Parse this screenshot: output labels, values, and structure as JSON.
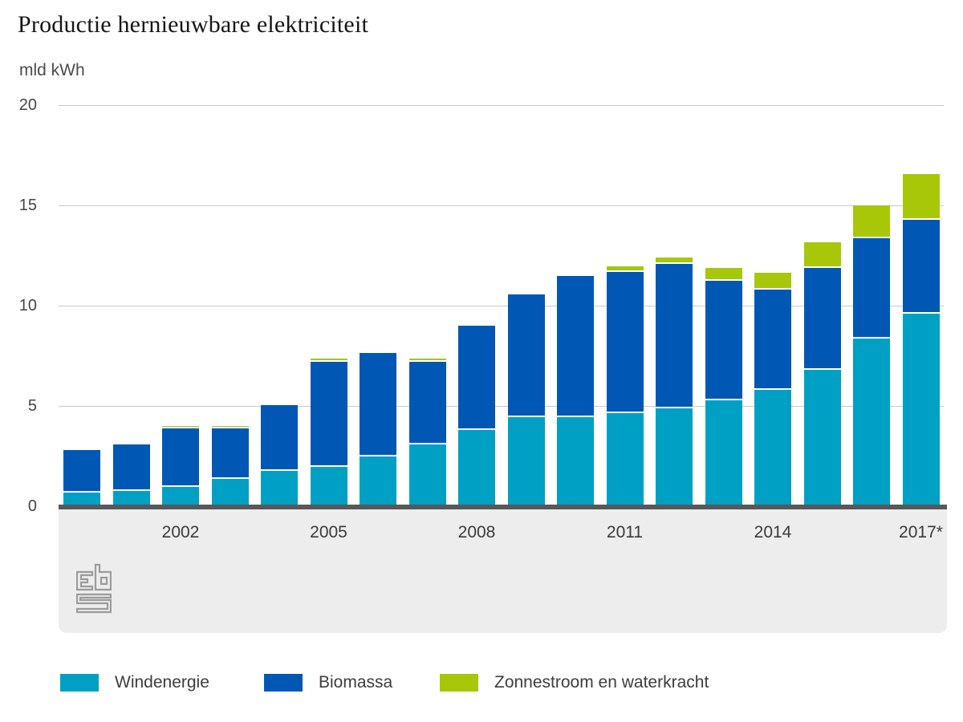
{
  "chart_data": {
    "type": "bar",
    "stacked": true,
    "title": "Productie hernieuwbare elektriciteit",
    "unit_label": "mld kWh",
    "ylabel": "mld kWh",
    "ylim": [
      0,
      20
    ],
    "yticks": [
      0,
      5,
      10,
      15,
      20
    ],
    "grid": "horizontal",
    "legend_position": "bottom",
    "categories": [
      "2000",
      "2001",
      "2002",
      "2003",
      "2004",
      "2005",
      "2006",
      "2007",
      "2008",
      "2009",
      "2010",
      "2011",
      "2012",
      "2013",
      "2014",
      "2015",
      "2016",
      "2017*"
    ],
    "x_ticks_shown": [
      {
        "index": 2,
        "label": "2002"
      },
      {
        "index": 5,
        "label": "2005"
      },
      {
        "index": 8,
        "label": "2008"
      },
      {
        "index": 11,
        "label": "2011"
      },
      {
        "index": 14,
        "label": "2014"
      },
      {
        "index": 17,
        "label": "2017*"
      }
    ],
    "series": [
      {
        "name": "Windenergie",
        "color": "#00a0c5",
        "values": [
          0.7,
          0.75,
          0.95,
          1.35,
          1.75,
          1.95,
          2.5,
          3.1,
          3.8,
          4.45,
          4.45,
          4.65,
          4.9,
          5.3,
          5.8,
          6.8,
          8.35,
          9.6
        ]
      },
      {
        "name": "Biomassa",
        "color": "#0058b4",
        "values": [
          2.1,
          2.35,
          2.95,
          2.55,
          3.3,
          5.25,
          5.15,
          4.1,
          5.2,
          6.1,
          7.05,
          7.05,
          7.2,
          5.95,
          5.0,
          5.1,
          5.0,
          4.7
        ]
      },
      {
        "name": "Zonnestroom en waterkracht",
        "color": "#a7c708",
        "values": [
          0,
          0,
          0.1,
          0.1,
          0,
          0.15,
          0,
          0.15,
          0.1,
          0,
          0,
          0.25,
          0.3,
          0.65,
          0.85,
          1.25,
          1.65,
          2.25
        ]
      }
    ]
  },
  "style_colors": {
    "grid": "#c9c9c9",
    "axis": "#57585a",
    "footer_band": "#ededed",
    "logo": "#9b9b9b",
    "tick_text": "#454545"
  },
  "branding": {
    "logo_name": "cbs-logo"
  }
}
